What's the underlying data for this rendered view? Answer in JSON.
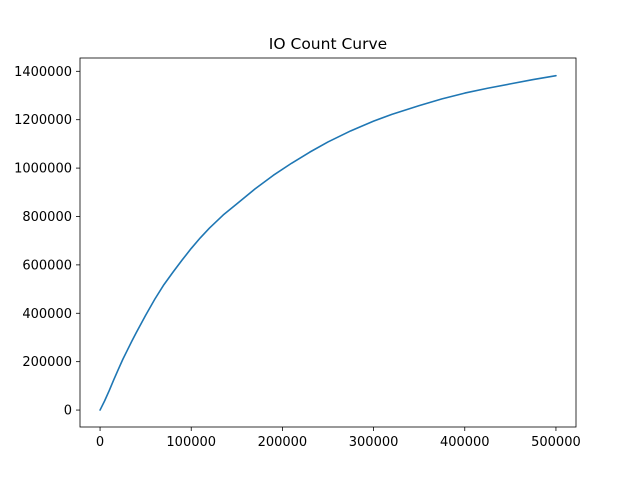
{
  "chart_data": {
    "type": "line",
    "title": "IO Count Curve",
    "xlabel": "",
    "ylabel": "",
    "xlim": [
      -22000,
      522000
    ],
    "ylim": [
      -70000,
      1455000
    ],
    "xticks": [
      0,
      100000,
      200000,
      300000,
      400000,
      500000
    ],
    "xtick_labels": [
      "0",
      "100000",
      "200000",
      "300000",
      "400000",
      "500000"
    ],
    "yticks": [
      0,
      200000,
      400000,
      600000,
      800000,
      1000000,
      1200000,
      1400000
    ],
    "ytick_labels": [
      "0",
      "200000",
      "400000",
      "600000",
      "800000",
      "1000000",
      "1200000",
      "1400000"
    ],
    "grid": false,
    "line_color": "#1f77b4",
    "series": [
      {
        "x": [
          0,
          5000,
          10000,
          15000,
          20000,
          25000,
          30000,
          35000,
          40000,
          50000,
          60000,
          70000,
          80000,
          90000,
          100000,
          110000,
          120000,
          135000,
          150000,
          170000,
          190000,
          210000,
          230000,
          250000,
          275000,
          300000,
          320000,
          350000,
          375000,
          400000,
          425000,
          450000,
          475000,
          500000
        ],
        "y": [
          0,
          38000,
          80000,
          125000,
          168000,
          210000,
          248000,
          286000,
          322000,
          392000,
          458000,
          518000,
          570000,
          620000,
          668000,
          712000,
          752000,
          806000,
          852000,
          914000,
          970000,
          1020000,
          1066000,
          1108000,
          1154000,
          1194000,
          1222000,
          1258000,
          1286000,
          1310000,
          1330000,
          1348000,
          1366000,
          1382000
        ]
      }
    ]
  }
}
